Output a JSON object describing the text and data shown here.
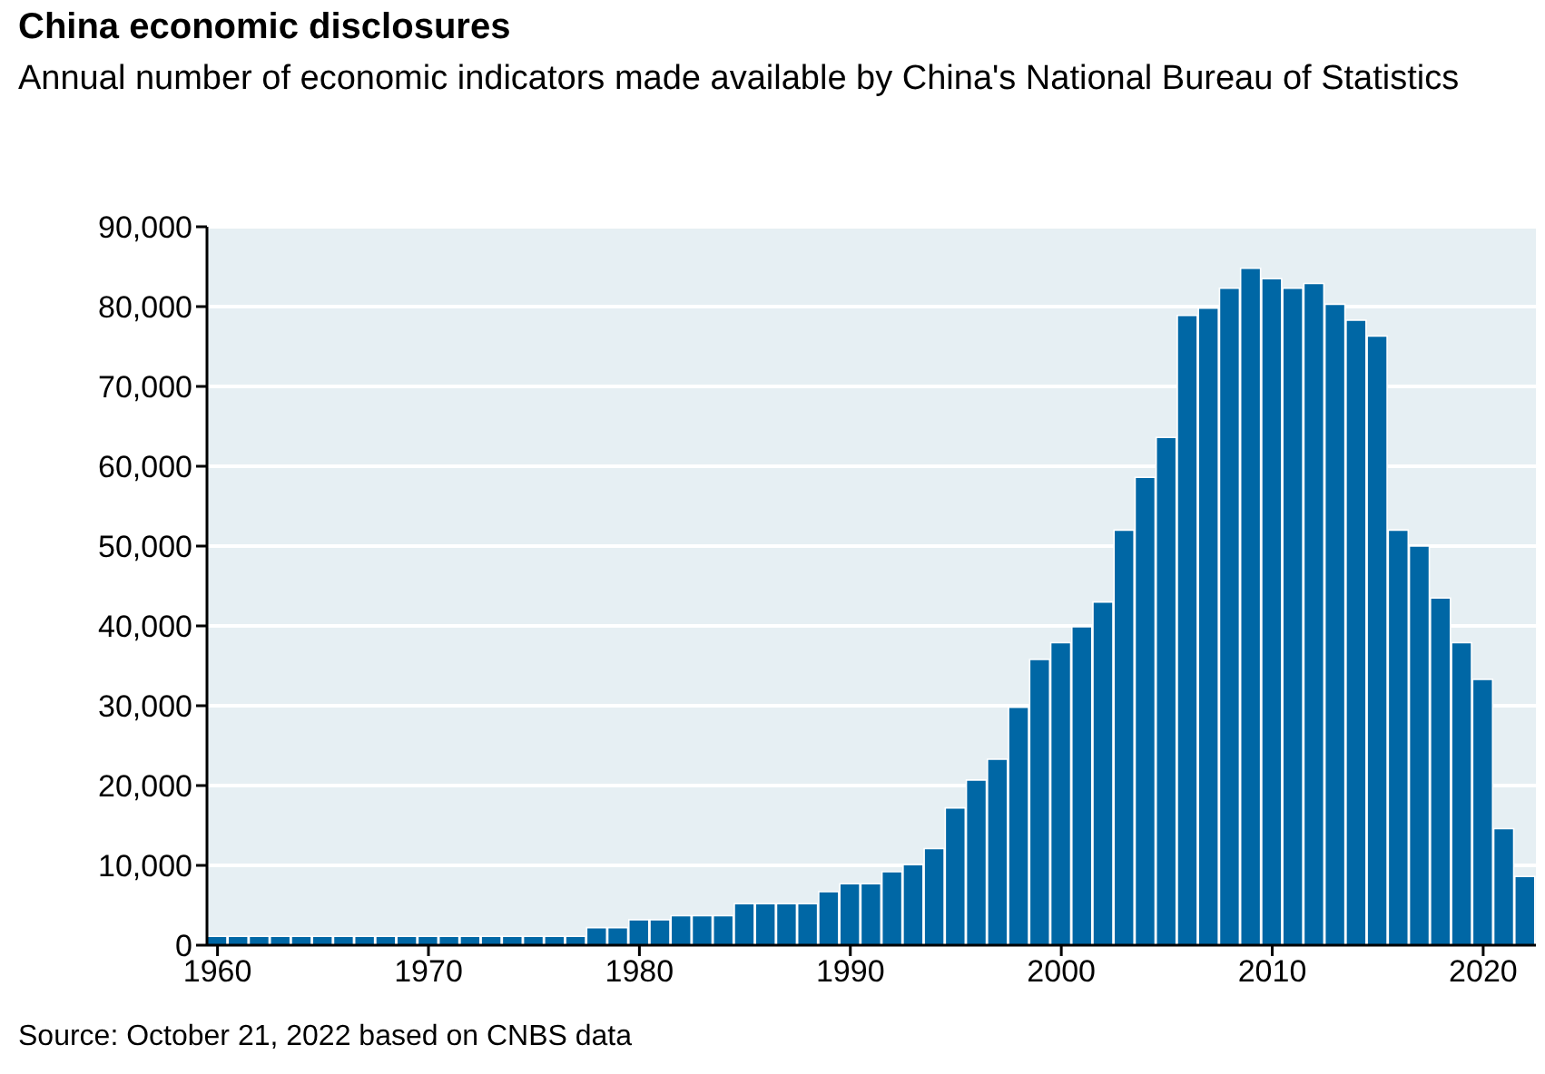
{
  "chart_data": {
    "type": "bar",
    "title": "China economic disclosures",
    "subtitle": "Annual number of economic indicators made available by China's National Bureau of Statistics",
    "x": [
      1960,
      1961,
      1962,
      1963,
      1964,
      1965,
      1966,
      1967,
      1968,
      1969,
      1970,
      1971,
      1972,
      1973,
      1974,
      1975,
      1976,
      1977,
      1978,
      1979,
      1980,
      1981,
      1982,
      1983,
      1984,
      1985,
      1986,
      1987,
      1988,
      1989,
      1990,
      1991,
      1992,
      1993,
      1994,
      1995,
      1996,
      1997,
      1998,
      1999,
      2000,
      2001,
      2002,
      2003,
      2004,
      2005,
      2006,
      2007,
      2008,
      2009,
      2010,
      2011,
      2012,
      2013,
      2014,
      2015,
      2016,
      2017,
      2018,
      2019,
      2020,
      2021,
      2022
    ],
    "values": [
      1100,
      1100,
      1100,
      1100,
      1100,
      1100,
      1100,
      1100,
      1100,
      1100,
      1100,
      1100,
      1100,
      1100,
      1100,
      1100,
      1100,
      1100,
      2200,
      2200,
      3200,
      3200,
      3700,
      3700,
      3700,
      5200,
      5200,
      5200,
      5200,
      6700,
      7700,
      7700,
      9200,
      10100,
      12100,
      17200,
      20700,
      23300,
      29800,
      35800,
      37900,
      39900,
      43000,
      52000,
      58600,
      63600,
      78900,
      79800,
      82300,
      84800,
      83500,
      82300,
      82900,
      80300,
      78300,
      76300,
      52000,
      50000,
      43500,
      37900,
      33300,
      14600,
      8600
    ],
    "color": "#0067a5",
    "xlim": [
      1959.5,
      2022.5
    ],
    "xticks": [
      1960,
      1970,
      1980,
      1990,
      2000,
      2010,
      2020
    ],
    "ylim": [
      0,
      90000
    ],
    "yticks": [
      {
        "value": 0,
        "label": "0"
      },
      {
        "value": 10000,
        "label": "10,000"
      },
      {
        "value": 20000,
        "label": "20,000"
      },
      {
        "value": 30000,
        "label": "30,000"
      },
      {
        "value": 40000,
        "label": "40,000"
      },
      {
        "value": 50000,
        "label": "50,000"
      },
      {
        "value": 60000,
        "label": "60,000"
      },
      {
        "value": 70000,
        "label": "70,000"
      },
      {
        "value": 80000,
        "label": "80,000"
      },
      {
        "value": 90000,
        "label": "90,000"
      }
    ],
    "grid": "y",
    "annotations": [
      "Source: October 21, 2022 based on CNBS data"
    ]
  }
}
